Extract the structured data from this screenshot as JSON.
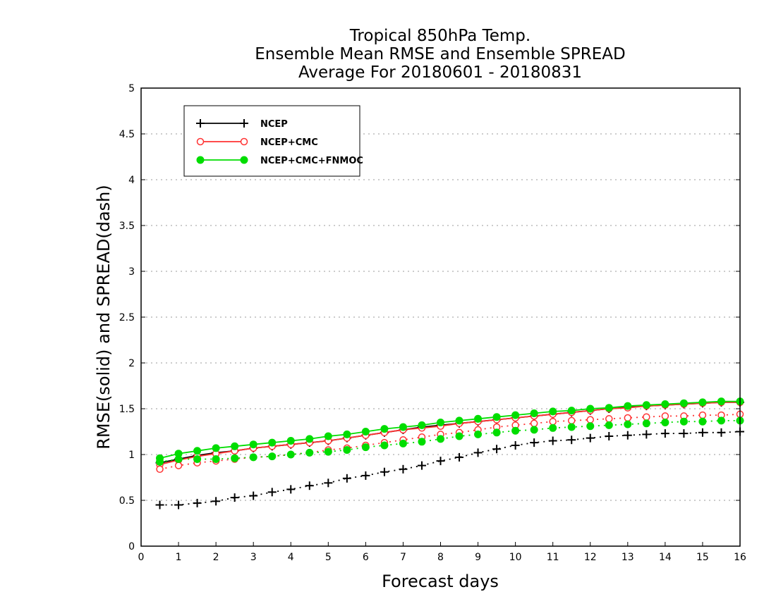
{
  "chart_data": {
    "type": "line",
    "title": [
      "Tropical 850hPa Temp.",
      "Ensemble Mean RMSE and Ensemble SPREAD",
      "Average For 20180601 - 20180831"
    ],
    "xlabel": "Forecast days",
    "ylabel": "RMSE(solid) and SPREAD(dash)",
    "xlim": [
      0,
      16
    ],
    "ylim": [
      0,
      5
    ],
    "xticks": [
      "0",
      "1",
      "2",
      "3",
      "4",
      "5",
      "6",
      "7",
      "8",
      "9",
      "10",
      "11",
      "12",
      "13",
      "14",
      "15",
      "16"
    ],
    "yticks": [
      "0",
      "0.5",
      "1",
      "1.5",
      "2",
      "2.5",
      "3",
      "3.5",
      "4",
      "4.5",
      "5"
    ],
    "grid": true,
    "legend_position": "top-left",
    "x": [
      0.5,
      1,
      1.5,
      2,
      2.5,
      3,
      3.5,
      4,
      4.5,
      5,
      5.5,
      6,
      6.5,
      7,
      7.5,
      8,
      8.5,
      9,
      9.5,
      10,
      10.5,
      11,
      11.5,
      12,
      12.5,
      13,
      13.5,
      14,
      14.5,
      15,
      15.5,
      16
    ],
    "series": [
      {
        "name": "NCEP",
        "color": "#000000",
        "marker": "plus",
        "rmse": [
          0.91,
          0.95,
          0.99,
          1.02,
          1.04,
          1.07,
          1.09,
          1.11,
          1.13,
          1.15,
          1.18,
          1.21,
          1.24,
          1.27,
          1.3,
          1.32,
          1.34,
          1.36,
          1.38,
          1.4,
          1.42,
          1.44,
          1.46,
          1.48,
          1.5,
          1.52,
          1.53,
          1.54,
          1.55,
          1.56,
          1.57,
          1.57
        ],
        "spread": [
          0.45,
          0.45,
          0.47,
          0.49,
          0.53,
          0.55,
          0.59,
          0.62,
          0.66,
          0.69,
          0.74,
          0.77,
          0.81,
          0.84,
          0.88,
          0.93,
          0.97,
          1.02,
          1.06,
          1.1,
          1.13,
          1.15,
          1.16,
          1.18,
          1.2,
          1.21,
          1.22,
          1.23,
          1.23,
          1.24,
          1.24,
          1.25
        ]
      },
      {
        "name": "NCEP+CMC",
        "color": "#ff3333",
        "marker": "open-circle",
        "rmse": [
          0.89,
          0.94,
          0.98,
          1.01,
          1.04,
          1.07,
          1.09,
          1.11,
          1.13,
          1.15,
          1.18,
          1.21,
          1.24,
          1.27,
          1.29,
          1.31,
          1.34,
          1.36,
          1.38,
          1.4,
          1.42,
          1.44,
          1.46,
          1.48,
          1.5,
          1.51,
          1.53,
          1.54,
          1.55,
          1.56,
          1.57,
          1.57
        ],
        "spread": [
          0.84,
          0.88,
          0.91,
          0.93,
          0.95,
          0.97,
          0.98,
          1.0,
          1.02,
          1.05,
          1.07,
          1.1,
          1.13,
          1.16,
          1.19,
          1.22,
          1.24,
          1.27,
          1.3,
          1.32,
          1.34,
          1.36,
          1.37,
          1.38,
          1.39,
          1.4,
          1.41,
          1.42,
          1.42,
          1.43,
          1.43,
          1.44
        ]
      },
      {
        "name": "NCEP+CMC+FNMOC",
        "color": "#00dd00",
        "marker": "filled-circle",
        "rmse": [
          0.96,
          1.01,
          1.04,
          1.07,
          1.09,
          1.11,
          1.13,
          1.15,
          1.17,
          1.2,
          1.22,
          1.25,
          1.28,
          1.3,
          1.32,
          1.35,
          1.37,
          1.39,
          1.41,
          1.43,
          1.45,
          1.47,
          1.48,
          1.5,
          1.51,
          1.53,
          1.54,
          1.55,
          1.56,
          1.57,
          1.58,
          1.58
        ],
        "spread": [
          0.92,
          0.95,
          0.95,
          0.95,
          0.96,
          0.97,
          0.98,
          1.0,
          1.02,
          1.03,
          1.05,
          1.08,
          1.1,
          1.12,
          1.14,
          1.17,
          1.2,
          1.22,
          1.24,
          1.26,
          1.27,
          1.29,
          1.3,
          1.31,
          1.32,
          1.33,
          1.34,
          1.35,
          1.36,
          1.36,
          1.37,
          1.37
        ]
      }
    ]
  }
}
